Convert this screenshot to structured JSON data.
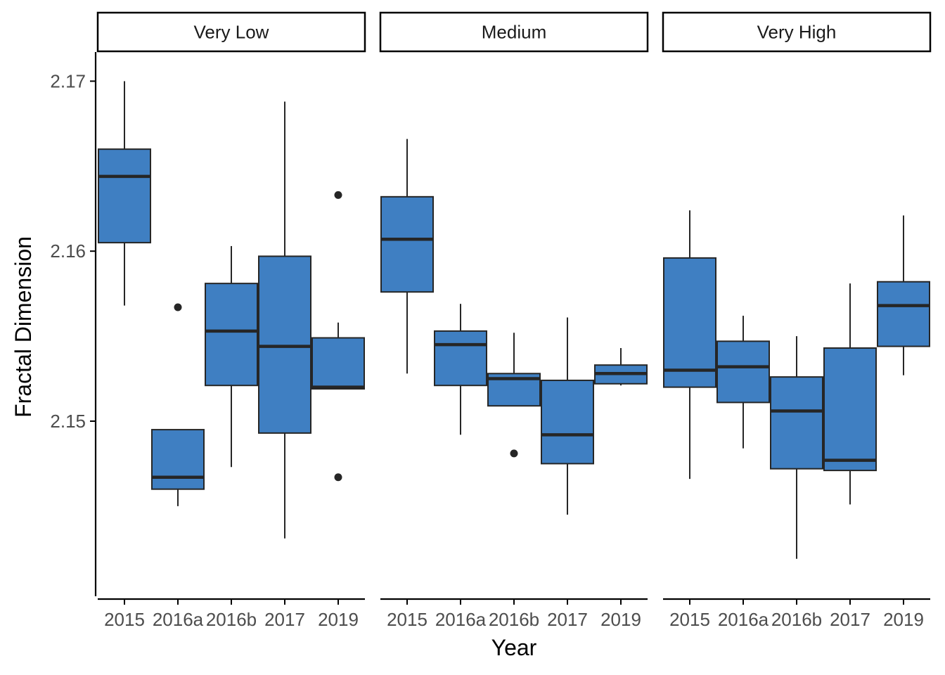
{
  "chart_data": {
    "type": "boxplot",
    "xlabel": "Year",
    "ylabel": "Fractal Dimension",
    "categories": [
      "2015",
      "2016a",
      "2016b",
      "2017",
      "2019"
    ],
    "ylim": [
      2.1397,
      2.1713
    ],
    "yticks": [
      2.15,
      2.16,
      2.17
    ],
    "yticks_labels": [
      "2.15",
      "2.16",
      "2.17"
    ],
    "colors": {
      "box_fill": "#3f7fc2",
      "box_stroke": "#262626",
      "axis": "#000000"
    },
    "facets": [
      {
        "label": "Very Low",
        "boxes": [
          {
            "category": "2015",
            "whisker_low": 2.1568,
            "q1": 2.1605,
            "median": 2.1644,
            "q3": 2.166,
            "whisker_high": 2.17,
            "outliers": []
          },
          {
            "category": "2016a",
            "whisker_low": 2.145,
            "q1": 2.146,
            "median": 2.1467,
            "q3": 2.1495,
            "whisker_high": 2.1495,
            "outliers": [
              2.1567
            ]
          },
          {
            "category": "2016b",
            "whisker_low": 2.1473,
            "q1": 2.1521,
            "median": 2.1553,
            "q3": 2.1581,
            "whisker_high": 2.1603,
            "outliers": []
          },
          {
            "category": "2017",
            "whisker_low": 2.1431,
            "q1": 2.1493,
            "median": 2.1544,
            "q3": 2.1597,
            "whisker_high": 2.1688,
            "outliers": []
          },
          {
            "category": "2019",
            "whisker_low": 2.1519,
            "q1": 2.1519,
            "median": 2.152,
            "q3": 2.1549,
            "whisker_high": 2.1558,
            "outliers": [
              2.1633,
              2.1467
            ]
          }
        ]
      },
      {
        "label": "Medium",
        "boxes": [
          {
            "category": "2015",
            "whisker_low": 2.1528,
            "q1": 2.1576,
            "median": 2.1607,
            "q3": 2.1632,
            "whisker_high": 2.1666,
            "outliers": []
          },
          {
            "category": "2016a",
            "whisker_low": 2.1492,
            "q1": 2.1521,
            "median": 2.1545,
            "q3": 2.1553,
            "whisker_high": 2.1569,
            "outliers": []
          },
          {
            "category": "2016b",
            "whisker_low": 2.1509,
            "q1": 2.1509,
            "median": 2.1525,
            "q3": 2.1528,
            "whisker_high": 2.1552,
            "outliers": [
              2.1481
            ]
          },
          {
            "category": "2017",
            "whisker_low": 2.1445,
            "q1": 2.1475,
            "median": 2.1492,
            "q3": 2.1524,
            "whisker_high": 2.1561,
            "outliers": []
          },
          {
            "category": "2019",
            "whisker_low": 2.1521,
            "q1": 2.1522,
            "median": 2.1528,
            "q3": 2.1533,
            "whisker_high": 2.1543,
            "outliers": []
          }
        ]
      },
      {
        "label": "Very High",
        "boxes": [
          {
            "category": "2015",
            "whisker_low": 2.1466,
            "q1": 2.152,
            "median": 2.153,
            "q3": 2.1596,
            "whisker_high": 2.1624,
            "outliers": []
          },
          {
            "category": "2016a",
            "whisker_low": 2.1484,
            "q1": 2.1511,
            "median": 2.1532,
            "q3": 2.1547,
            "whisker_high": 2.1562,
            "outliers": []
          },
          {
            "category": "2016b",
            "whisker_low": 2.1419,
            "q1": 2.1472,
            "median": 2.1506,
            "q3": 2.1526,
            "whisker_high": 2.155,
            "outliers": []
          },
          {
            "category": "2017",
            "whisker_low": 2.1451,
            "q1": 2.1471,
            "median": 2.1477,
            "q3": 2.1543,
            "whisker_high": 2.1581,
            "outliers": []
          },
          {
            "category": "2019",
            "whisker_low": 2.1527,
            "q1": 2.1544,
            "median": 2.1568,
            "q3": 2.1582,
            "whisker_high": 2.1621,
            "outliers": []
          }
        ]
      }
    ]
  }
}
